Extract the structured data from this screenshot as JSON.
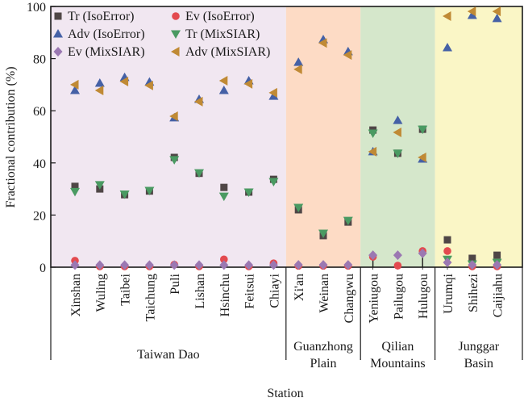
{
  "chart_data": {
    "type": "scatter",
    "title": "",
    "xlabel": "Station",
    "ylabel": "Fractional contribution (%)",
    "ylim": [
      0,
      100
    ],
    "yticks": [
      0,
      20,
      40,
      60,
      80,
      100
    ],
    "grid": false,
    "legend_position": "top-left",
    "categories": [
      "Xinshan",
      "Wuling",
      "Taibei",
      "Taichung",
      "Puli",
      "Lishan",
      "Hsinchu",
      "Feitsui",
      "Chiayi",
      "Xi'an",
      "Weinan",
      "Changwu",
      "Yeniugou",
      "Pailugou",
      "Hulugou",
      "Urumqi",
      "Shihezi",
      "Caijiahu"
    ],
    "regions": [
      {
        "name": "Taiwan Dao",
        "lines": [
          "Taiwan Dao"
        ],
        "start": 0,
        "end": 8,
        "color": "#f1e7f1"
      },
      {
        "name": "Guanzhong Plain",
        "lines": [
          "Guanzhong",
          "Plain"
        ],
        "start": 9,
        "end": 11,
        "color": "#fddbc5"
      },
      {
        "name": "Qilian Mountains",
        "lines": [
          "Qilian",
          "Mountains"
        ],
        "start": 12,
        "end": 14,
        "color": "#d5e7cb"
      },
      {
        "name": "Junggar Basin",
        "lines": [
          "Junggar",
          "Basin"
        ],
        "start": 15,
        "end": 17,
        "color": "#faf6c6"
      }
    ],
    "series": [
      {
        "name": "Tr (IsoError)",
        "marker": "square",
        "color": "#4f4646",
        "values": [
          31.0,
          30.0,
          27.8,
          29.2,
          42.1,
          36.0,
          30.6,
          28.8,
          33.7,
          22.0,
          12.1,
          17.3,
          52.6,
          43.7,
          52.9,
          10.5,
          3.4,
          4.6
        ]
      },
      {
        "name": "Ev (IsoError)",
        "marker": "circle",
        "color": "#e34a4f",
        "values": [
          2.5,
          0.3,
          0.3,
          0.3,
          1.0,
          0.3,
          3.0,
          0.3,
          1.5,
          0.5,
          0.5,
          0.5,
          4.0,
          0.6,
          6.2,
          6.2,
          0.3,
          0.3
        ]
      },
      {
        "name": "Adv (IsoError)",
        "marker": "triangle-up",
        "color": "#4561a6",
        "values": [
          67.8,
          70.6,
          72.8,
          71.0,
          57.3,
          64.4,
          67.8,
          71.5,
          65.6,
          78.6,
          87.3,
          82.7,
          44.3,
          56.3,
          41.5,
          84.2,
          96.6,
          95.4
        ]
      },
      {
        "name": "Tr (MixSIAR)",
        "marker": "triangle-down",
        "color": "#4a9a62",
        "values": [
          29.0,
          31.6,
          28.0,
          29.4,
          41.2,
          36.2,
          27.2,
          28.8,
          32.8,
          22.9,
          13.0,
          17.9,
          51.4,
          43.7,
          52.9,
          3.0,
          1.2,
          1.8
        ]
      },
      {
        "name": "Ev (MixSIAR)",
        "marker": "diamond",
        "color": "#9b78b2",
        "values": [
          0.8,
          0.8,
          0.8,
          0.8,
          0.8,
          0.8,
          0.8,
          0.8,
          0.8,
          0.9,
          0.9,
          0.9,
          4.6,
          4.6,
          5.3,
          1.8,
          0.9,
          0.9
        ]
      },
      {
        "name": "Adv (MixSIAR)",
        "marker": "triangle-left",
        "color": "#c08a35",
        "values": [
          70.0,
          67.8,
          71.2,
          69.7,
          57.9,
          63.5,
          71.5,
          70.3,
          66.9,
          75.9,
          86.0,
          81.4,
          44.3,
          51.7,
          42.1,
          96.3,
          98.1,
          98.1
        ]
      }
    ],
    "error_bars": [
      {
        "series": "Ev (MixSIAR)",
        "station": "Yeniugou",
        "low": 0,
        "high": 4.6
      },
      {
        "series": "Ev (MixSIAR)",
        "station": "Hulugou",
        "low": 0,
        "high": 5.3
      }
    ]
  }
}
